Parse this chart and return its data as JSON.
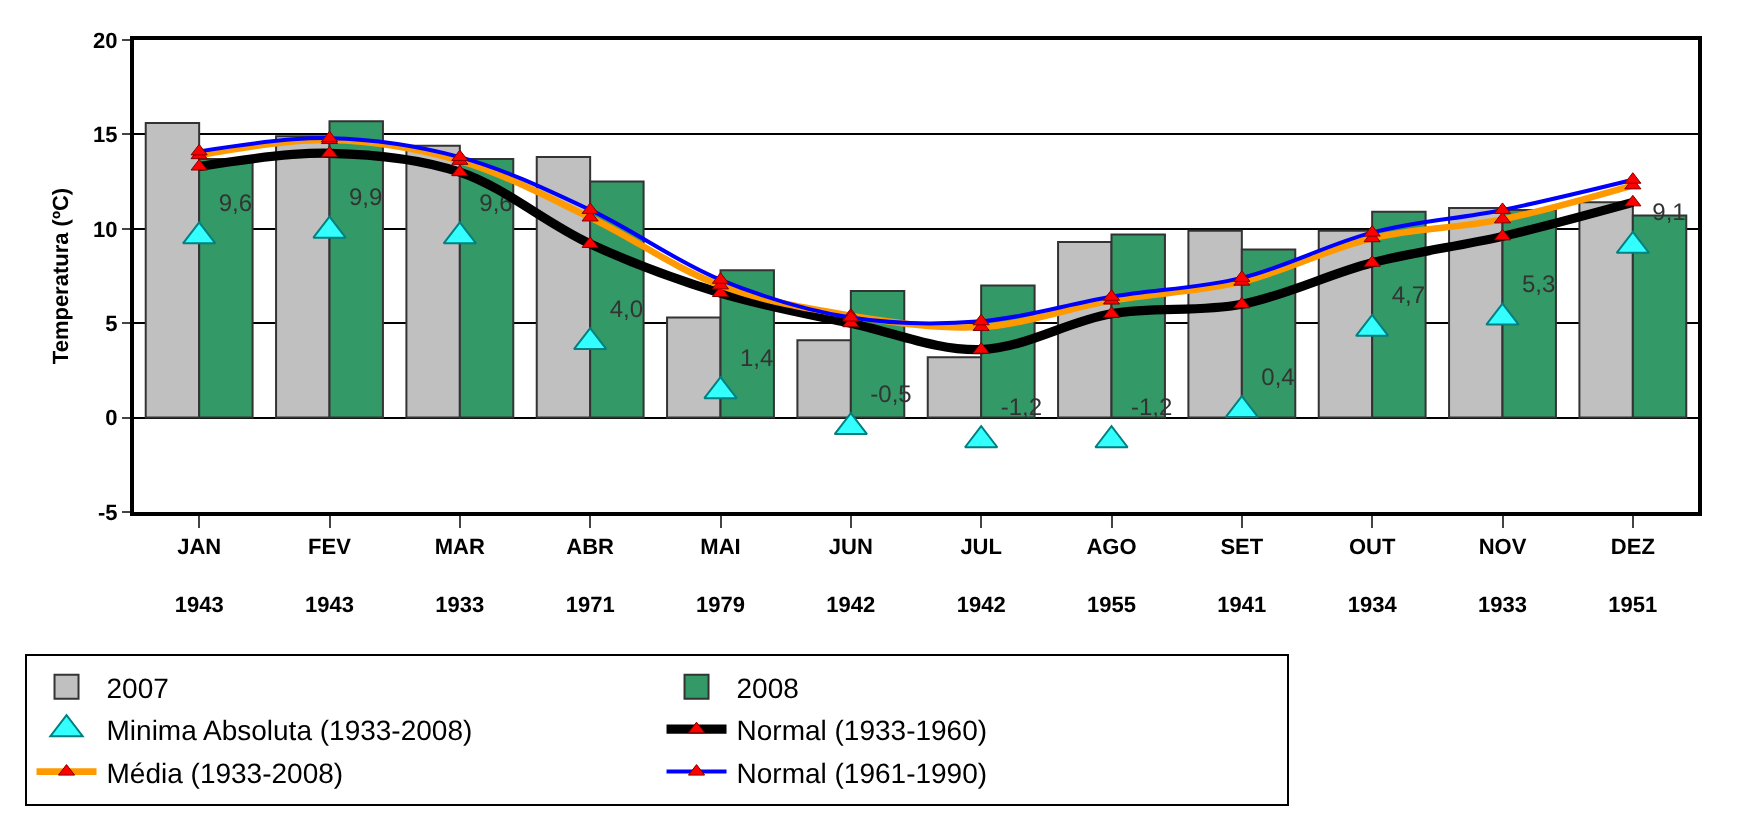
{
  "chart_data": {
    "type": "bar",
    "ylabel": "Temperatura (ºC)",
    "categories": [
      "JAN\n1943",
      "FEV\n1943",
      "MAR\n1933",
      "ABR\n1971",
      "MAI\n1979",
      "JUN\n1942",
      "JUL\n1942",
      "AGO\n1955",
      "SET\n1941",
      "OUT\n1934",
      "NOV\n1933",
      "DEZ\n1951"
    ],
    "ylim": [
      -5,
      20
    ],
    "yticks": [
      -5,
      0,
      5,
      10,
      15,
      20
    ],
    "grid": "y",
    "legend": "bottom",
    "series": [
      {
        "name": "2007",
        "color": "#c0c0c0",
        "values": [
          15.6,
          14.9,
          14.4,
          13.8,
          5.3,
          4.1,
          3.2,
          9.3,
          9.9,
          9.9,
          11.1,
          11.4
        ]
      },
      {
        "name": "2008",
        "color": "#339966",
        "values": [
          13.7,
          15.7,
          13.7,
          12.5,
          7.8,
          6.7,
          7.0,
          9.7,
          8.9,
          10.9,
          11.0,
          10.7
        ]
      },
      {
        "name": "Minima Absoluta (1933-2008)",
        "type": "scatter",
        "marker": "triangle",
        "color": "#33ffff",
        "values": [
          9.6,
          9.9,
          9.6,
          4.0,
          1.4,
          -0.5,
          -1.2,
          -1.2,
          0.4,
          4.7,
          5.3,
          9.1
        ],
        "value_labels": [
          "9,6",
          "9,9",
          "9,6",
          "4,0",
          "1,4",
          "-0,5",
          "-1,2",
          "-1,2",
          "0,4",
          "4,7",
          "5,3",
          "9,1"
        ]
      },
      {
        "name": "Normal (1933-1960)",
        "type": "line",
        "marker": "triangle",
        "line_style": "solid",
        "color": "#000000",
        "values": [
          13.3,
          14.0,
          13.0,
          9.2,
          6.6,
          5.0,
          3.6,
          5.5,
          6.0,
          8.2,
          9.6,
          11.4
        ]
      },
      {
        "name": "Média (1933-2008)",
        "type": "line",
        "marker": "triangle",
        "line_style": "solid",
        "color": "#ff9900",
        "values": [
          13.9,
          14.7,
          13.6,
          10.6,
          7.0,
          5.4,
          4.8,
          6.2,
          7.2,
          9.5,
          10.5,
          12.3
        ]
      },
      {
        "name": "Normal (1961-1990)",
        "type": "line",
        "marker": "triangle",
        "line_style": "solid",
        "color": "#0000ff",
        "values": [
          14.1,
          14.8,
          13.8,
          11.0,
          7.3,
          5.3,
          5.1,
          6.4,
          7.4,
          9.8,
          11.0,
          12.6
        ]
      }
    ]
  }
}
